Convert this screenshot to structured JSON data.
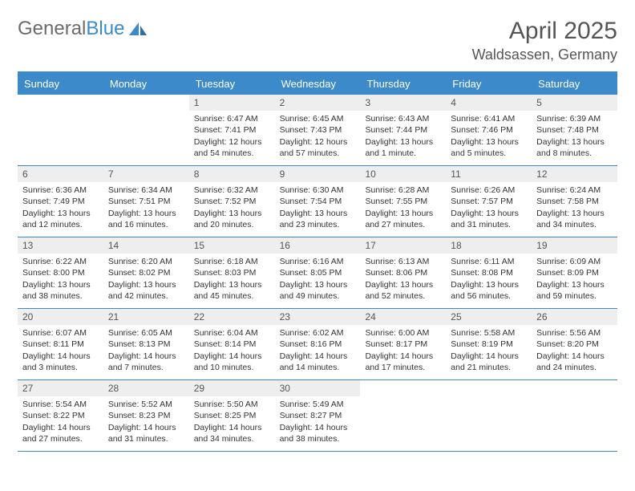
{
  "brand": {
    "part1": "General",
    "part2": "Blue"
  },
  "title": "April 2025",
  "location": "Waldsassen, Germany",
  "colors": {
    "header_bg": "#3c8ac9",
    "header_text": "#ffffff",
    "daynum_bg": "#eeeeee",
    "text": "#333333",
    "title_text": "#555555",
    "page_bg": "#ffffff",
    "rule": "#3c8ac9"
  },
  "fonts": {
    "body_pt": 10.5,
    "title_pt": 30,
    "location_pt": 18,
    "dayheader_pt": 13,
    "daynum_pt": 12
  },
  "day_names": [
    "Sunday",
    "Monday",
    "Tuesday",
    "Wednesday",
    "Thursday",
    "Friday",
    "Saturday"
  ],
  "weeks": [
    [
      null,
      null,
      {
        "n": "1",
        "sunrise": "6:47 AM",
        "sunset": "7:41 PM",
        "daylight": "12 hours and 54 minutes."
      },
      {
        "n": "2",
        "sunrise": "6:45 AM",
        "sunset": "7:43 PM",
        "daylight": "12 hours and 57 minutes."
      },
      {
        "n": "3",
        "sunrise": "6:43 AM",
        "sunset": "7:44 PM",
        "daylight": "13 hours and 1 minute."
      },
      {
        "n": "4",
        "sunrise": "6:41 AM",
        "sunset": "7:46 PM",
        "daylight": "13 hours and 5 minutes."
      },
      {
        "n": "5",
        "sunrise": "6:39 AM",
        "sunset": "7:48 PM",
        "daylight": "13 hours and 8 minutes."
      }
    ],
    [
      {
        "n": "6",
        "sunrise": "6:36 AM",
        "sunset": "7:49 PM",
        "daylight": "13 hours and 12 minutes."
      },
      {
        "n": "7",
        "sunrise": "6:34 AM",
        "sunset": "7:51 PM",
        "daylight": "13 hours and 16 minutes."
      },
      {
        "n": "8",
        "sunrise": "6:32 AM",
        "sunset": "7:52 PM",
        "daylight": "13 hours and 20 minutes."
      },
      {
        "n": "9",
        "sunrise": "6:30 AM",
        "sunset": "7:54 PM",
        "daylight": "13 hours and 23 minutes."
      },
      {
        "n": "10",
        "sunrise": "6:28 AM",
        "sunset": "7:55 PM",
        "daylight": "13 hours and 27 minutes."
      },
      {
        "n": "11",
        "sunrise": "6:26 AM",
        "sunset": "7:57 PM",
        "daylight": "13 hours and 31 minutes."
      },
      {
        "n": "12",
        "sunrise": "6:24 AM",
        "sunset": "7:58 PM",
        "daylight": "13 hours and 34 minutes."
      }
    ],
    [
      {
        "n": "13",
        "sunrise": "6:22 AM",
        "sunset": "8:00 PM",
        "daylight": "13 hours and 38 minutes."
      },
      {
        "n": "14",
        "sunrise": "6:20 AM",
        "sunset": "8:02 PM",
        "daylight": "13 hours and 42 minutes."
      },
      {
        "n": "15",
        "sunrise": "6:18 AM",
        "sunset": "8:03 PM",
        "daylight": "13 hours and 45 minutes."
      },
      {
        "n": "16",
        "sunrise": "6:16 AM",
        "sunset": "8:05 PM",
        "daylight": "13 hours and 49 minutes."
      },
      {
        "n": "17",
        "sunrise": "6:13 AM",
        "sunset": "8:06 PM",
        "daylight": "13 hours and 52 minutes."
      },
      {
        "n": "18",
        "sunrise": "6:11 AM",
        "sunset": "8:08 PM",
        "daylight": "13 hours and 56 minutes."
      },
      {
        "n": "19",
        "sunrise": "6:09 AM",
        "sunset": "8:09 PM",
        "daylight": "13 hours and 59 minutes."
      }
    ],
    [
      {
        "n": "20",
        "sunrise": "6:07 AM",
        "sunset": "8:11 PM",
        "daylight": "14 hours and 3 minutes."
      },
      {
        "n": "21",
        "sunrise": "6:05 AM",
        "sunset": "8:13 PM",
        "daylight": "14 hours and 7 minutes."
      },
      {
        "n": "22",
        "sunrise": "6:04 AM",
        "sunset": "8:14 PM",
        "daylight": "14 hours and 10 minutes."
      },
      {
        "n": "23",
        "sunrise": "6:02 AM",
        "sunset": "8:16 PM",
        "daylight": "14 hours and 14 minutes."
      },
      {
        "n": "24",
        "sunrise": "6:00 AM",
        "sunset": "8:17 PM",
        "daylight": "14 hours and 17 minutes."
      },
      {
        "n": "25",
        "sunrise": "5:58 AM",
        "sunset": "8:19 PM",
        "daylight": "14 hours and 21 minutes."
      },
      {
        "n": "26",
        "sunrise": "5:56 AM",
        "sunset": "8:20 PM",
        "daylight": "14 hours and 24 minutes."
      }
    ],
    [
      {
        "n": "27",
        "sunrise": "5:54 AM",
        "sunset": "8:22 PM",
        "daylight": "14 hours and 27 minutes."
      },
      {
        "n": "28",
        "sunrise": "5:52 AM",
        "sunset": "8:23 PM",
        "daylight": "14 hours and 31 minutes."
      },
      {
        "n": "29",
        "sunrise": "5:50 AM",
        "sunset": "8:25 PM",
        "daylight": "14 hours and 34 minutes."
      },
      {
        "n": "30",
        "sunrise": "5:49 AM",
        "sunset": "8:27 PM",
        "daylight": "14 hours and 38 minutes."
      },
      null,
      null,
      null
    ]
  ],
  "labels": {
    "sunrise": "Sunrise: ",
    "sunset": "Sunset: ",
    "daylight": "Daylight: "
  }
}
